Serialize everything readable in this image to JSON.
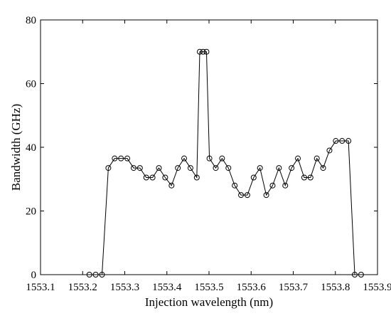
{
  "chart_data": {
    "type": "line",
    "x_label": "Injection wavelength (nm)",
    "y_label": "Bandwidth (GHz)",
    "xlim": [
      1553.1,
      1553.9
    ],
    "xticks": [
      1553.1,
      1553.2,
      1553.3,
      1553.4,
      1553.5,
      1553.6,
      1553.7,
      1553.8,
      1553.9
    ],
    "ylim": [
      0,
      80
    ],
    "yticks": [
      0,
      20,
      40,
      60,
      80
    ],
    "grid": false,
    "series": [
      {
        "color": "#000000",
        "x": [
          1553.216,
          1553.231,
          1553.246,
          1553.261,
          1553.276,
          1553.291,
          1553.306,
          1553.321,
          1553.336,
          1553.351,
          1553.366,
          1553.381,
          1553.396,
          1553.411,
          1553.426,
          1553.441,
          1553.456,
          1553.471,
          1553.478,
          1553.486,
          1553.494,
          1553.501,
          1553.516,
          1553.531,
          1553.546,
          1553.561,
          1553.576,
          1553.591,
          1553.606,
          1553.621,
          1553.636,
          1553.651,
          1553.666,
          1553.681,
          1553.696,
          1553.711,
          1553.726,
          1553.741,
          1553.756,
          1553.771,
          1553.786,
          1553.801,
          1553.816,
          1553.831,
          1553.846,
          1553.861
        ],
        "values": [
          0,
          0,
          0,
          33.5,
          36.5,
          36.5,
          36.5,
          33.5,
          33.5,
          30.5,
          30.5,
          33.5,
          30.5,
          28,
          33.5,
          36.5,
          33.5,
          30.5,
          70,
          70,
          70,
          36.5,
          33.5,
          36.5,
          33.5,
          28,
          25,
          25,
          30.5,
          33.5,
          25,
          28,
          33.5,
          28,
          33.5,
          36.5,
          30.5,
          30.5,
          36.5,
          33.5,
          39,
          42,
          42,
          42,
          0,
          0
        ]
      }
    ]
  }
}
